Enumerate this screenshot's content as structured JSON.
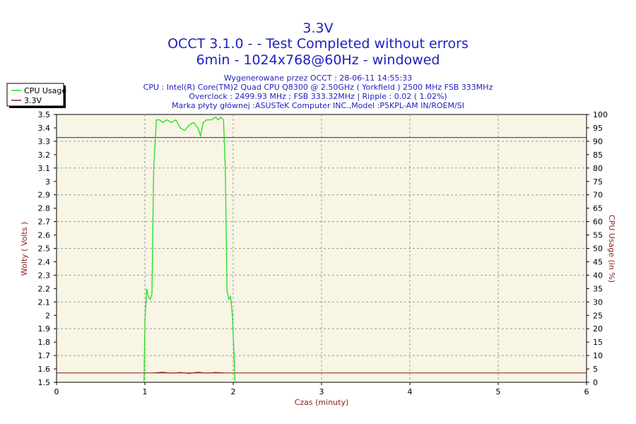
{
  "chart_data": {
    "type": "line",
    "title": "3.3V",
    "subtitle_lines": [
      "OCCT 3.1.0 -  - Test Completed without errors",
      "6min - 1024x768@60Hz - windowed"
    ],
    "info_lines": [
      "Wygenerowane przez OCCT : 28-06-11 14:55:33",
      "CPU : Intel(R) Core(TM)2 Quad CPU Q8300 @ 2.50GHz ( Yorkfield ) 2500 MHz FSB 333MHz",
      "Overclock : 2499.93 MHz ; FSB 333.32MHz | Ripple : 0.02 ( 1.02%)",
      "Marka płyty głównej :ASUSTeK Computer INC.,Model :P5KPL-AM IN/ROEM/SI"
    ],
    "xlabel": "Czas (minuty)",
    "ylabel_left": "Wolty ( Volts )",
    "ylabel_right": "CPU Usage (in %)",
    "xlim": [
      0,
      6
    ],
    "ylim_left": [
      1.5,
      3.5
    ],
    "ylim_right": [
      0,
      100
    ],
    "x_ticks": [
      "0",
      "1",
      "2",
      "3",
      "4",
      "5",
      "6"
    ],
    "y_left_ticks": [
      "1.5",
      "1.6",
      "1.7",
      "1.8",
      "1.9",
      "2",
      "2.1",
      "2.2",
      "2.3",
      "2.4",
      "2.5",
      "2.6",
      "2.7",
      "2.8",
      "2.9",
      "3",
      "3.1",
      "3.2",
      "3.3",
      "3.4",
      "3.5"
    ],
    "y_right_ticks": [
      "0",
      "5",
      "10",
      "15",
      "20",
      "25",
      "30",
      "35",
      "40",
      "45",
      "50",
      "55",
      "60",
      "65",
      "70",
      "75",
      "80",
      "85",
      "90",
      "95",
      "100"
    ],
    "grid": true,
    "legend_position": "top-left",
    "series": [
      {
        "name": "CPU Usage",
        "axis": "right",
        "color": "#22dd22",
        "points": [
          [
            0.99,
            0
          ],
          [
            1.0,
            22
          ],
          [
            1.02,
            35
          ],
          [
            1.04,
            32
          ],
          [
            1.06,
            31
          ],
          [
            1.08,
            33
          ],
          [
            1.1,
            80
          ],
          [
            1.13,
            98
          ],
          [
            1.17,
            98
          ],
          [
            1.2,
            97
          ],
          [
            1.25,
            98
          ],
          [
            1.3,
            97
          ],
          [
            1.35,
            98
          ],
          [
            1.4,
            95
          ],
          [
            1.45,
            94
          ],
          [
            1.5,
            96
          ],
          [
            1.55,
            97
          ],
          [
            1.6,
            95
          ],
          [
            1.63,
            92
          ],
          [
            1.66,
            97
          ],
          [
            1.7,
            98
          ],
          [
            1.75,
            98
          ],
          [
            1.8,
            99
          ],
          [
            1.83,
            98
          ],
          [
            1.86,
            99
          ],
          [
            1.89,
            98
          ],
          [
            1.91,
            80
          ],
          [
            1.93,
            34
          ],
          [
            1.95,
            31
          ],
          [
            1.97,
            32
          ],
          [
            1.99,
            25
          ],
          [
            2.01,
            10
          ],
          [
            2.02,
            0
          ]
        ]
      },
      {
        "name": "3.3V",
        "axis": "left",
        "color": "#8b1a1a",
        "points": [
          [
            0.0,
            3.328
          ],
          [
            6.0,
            3.328
          ]
        ]
      }
    ],
    "colors": {
      "plot_background": "#f8f5e4",
      "grid": "#999999",
      "title": "#1f1fbf",
      "axis_title": "#8b1a1a",
      "reference_line": "#1f1fbf",
      "cpu_baseline_line": "#8b1a1a"
    },
    "reference_line_value": 3.328
  }
}
